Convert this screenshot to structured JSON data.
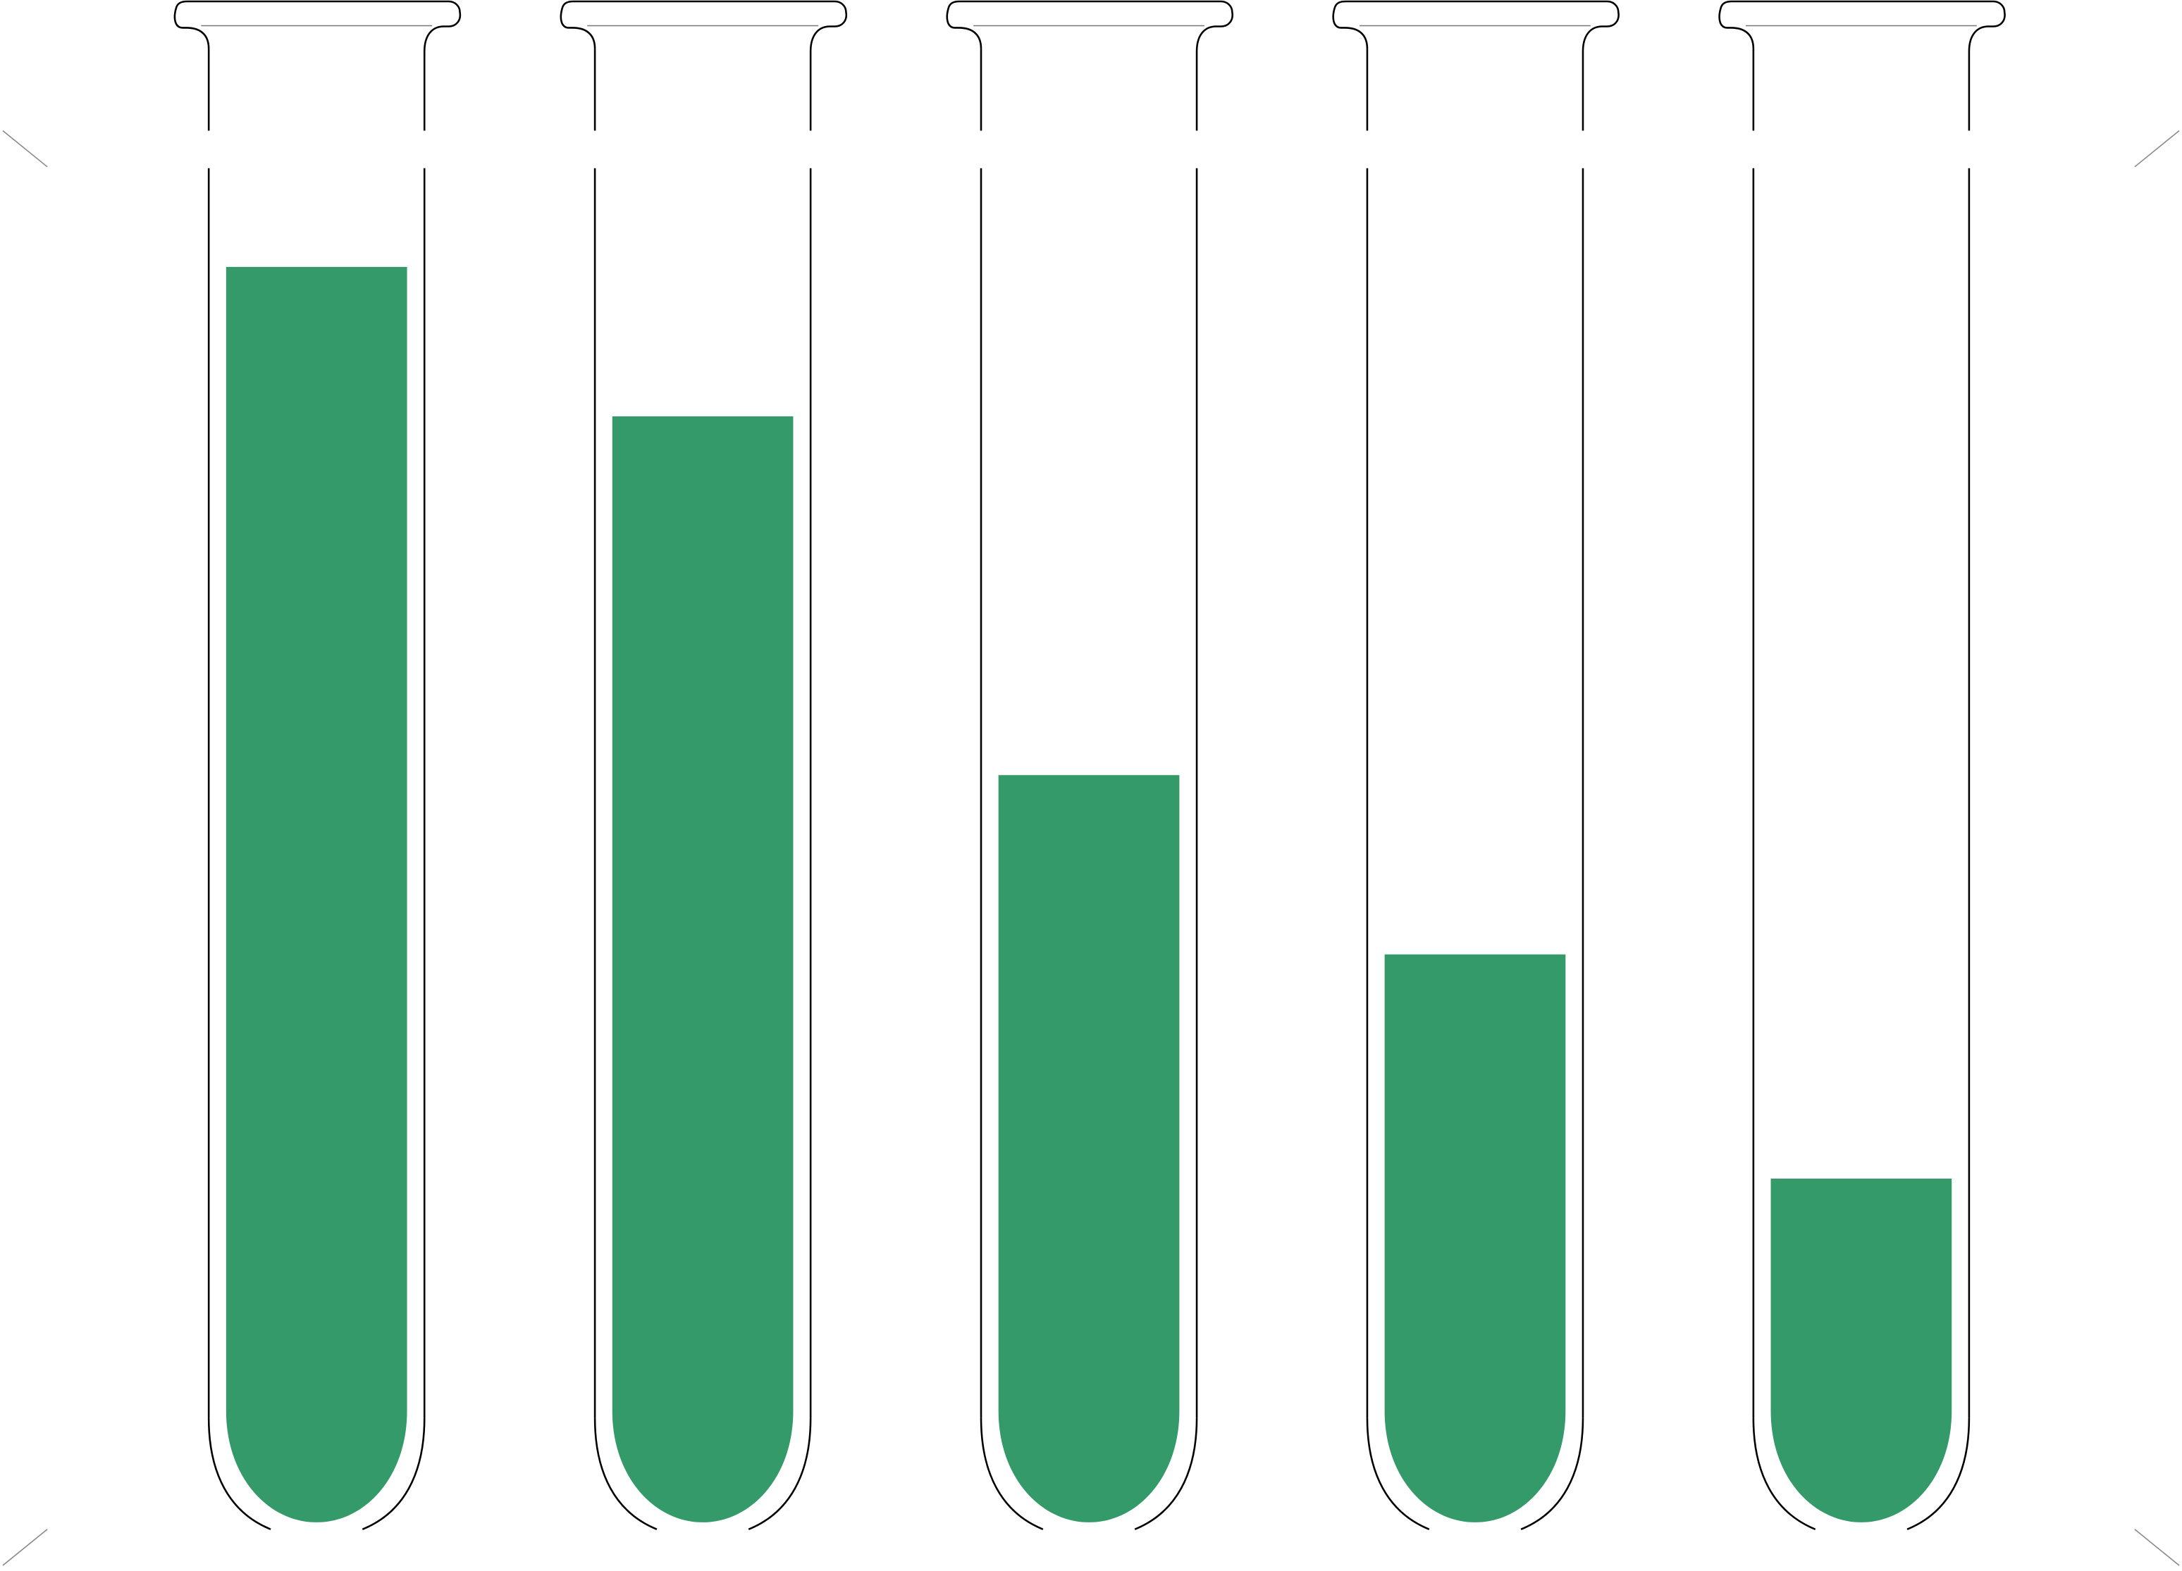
{
  "diagram": {
    "type": "test-tube-levels",
    "liquid_color": "#349a69",
    "outline_color": "#000000",
    "background_color": "#ffffff",
    "tubes": [
      {
        "fill_percent": 84
      },
      {
        "fill_percent": 74
      },
      {
        "fill_percent": 50
      },
      {
        "fill_percent": 38
      },
      {
        "fill_percent": 23
      }
    ]
  }
}
